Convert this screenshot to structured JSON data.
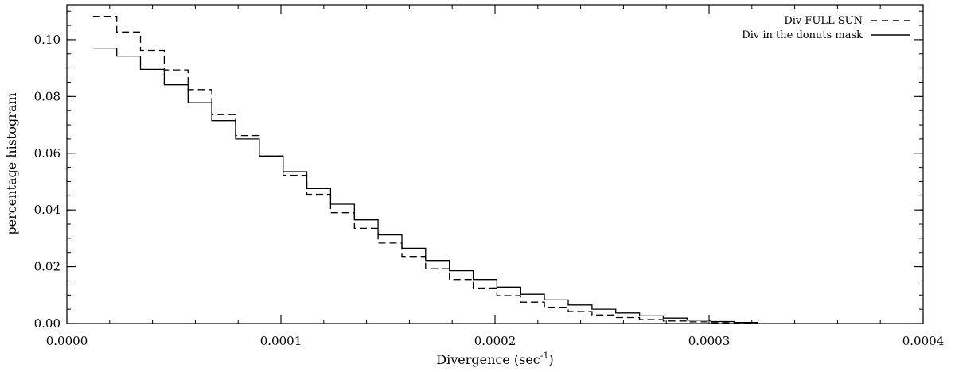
{
  "chart_data": {
    "type": "line",
    "xlabel": "Divergence  (sec",
    "xlabel_sup": "-1",
    "xlabel_close": ")",
    "ylabel": "percentage histogram",
    "xlim": [
      0.0,
      0.0004
    ],
    "ylim": [
      0.0,
      0.1123
    ],
    "xticks": [
      0.0,
      0.0001,
      0.0002,
      0.0003,
      0.0004
    ],
    "xtick_labels": [
      "0.0000",
      "0.0001",
      "0.0002",
      "0.0003",
      "0.0004"
    ],
    "yticks": [
      0.0,
      0.02,
      0.04,
      0.06,
      0.08,
      0.1
    ],
    "ytick_labels": [
      "0.00",
      "0.02",
      "0.04",
      "0.06",
      "0.08",
      "0.10"
    ],
    "grid": false,
    "legend_position": "top-right",
    "bin_edges": [
      1.22e-05,
      2.33e-05,
      3.44e-05,
      4.55e-05,
      5.66e-05,
      6.77e-05,
      7.88e-05,
      8.99e-05,
      0.000101,
      0.0001121,
      0.0001232,
      0.0001343,
      0.0001454,
      0.0001565,
      0.0001676,
      0.0001787,
      0.0001898,
      0.0002009,
      0.000212,
      0.0002231,
      0.0002342,
      0.0002453,
      0.0002564,
      0.0002675,
      0.0002786,
      0.0002897,
      0.0003008,
      0.0003119,
      0.000323
    ],
    "series": [
      {
        "name": "Div FULL SUN",
        "style": "dashed",
        "values": [
          0.1082,
          0.1027,
          0.0962,
          0.0893,
          0.0824,
          0.0736,
          0.0662,
          0.059,
          0.0522,
          0.0455,
          0.039,
          0.0335,
          0.0283,
          0.0236,
          0.0193,
          0.0155,
          0.0125,
          0.0098,
          0.0075,
          0.0057,
          0.0042,
          0.003,
          0.0021,
          0.0014,
          0.0009,
          0.0006,
          0.0003,
          0.0002
        ]
      },
      {
        "name": "Div in the donuts mask",
        "style": "solid",
        "values": [
          0.097,
          0.0942,
          0.0895,
          0.0841,
          0.0778,
          0.0715,
          0.065,
          0.059,
          0.0535,
          0.0475,
          0.042,
          0.0365,
          0.0312,
          0.0265,
          0.0222,
          0.0186,
          0.0155,
          0.0128,
          0.0103,
          0.0083,
          0.0065,
          0.005,
          0.0037,
          0.0027,
          0.0019,
          0.0012,
          0.0007,
          0.0004
        ]
      }
    ]
  }
}
